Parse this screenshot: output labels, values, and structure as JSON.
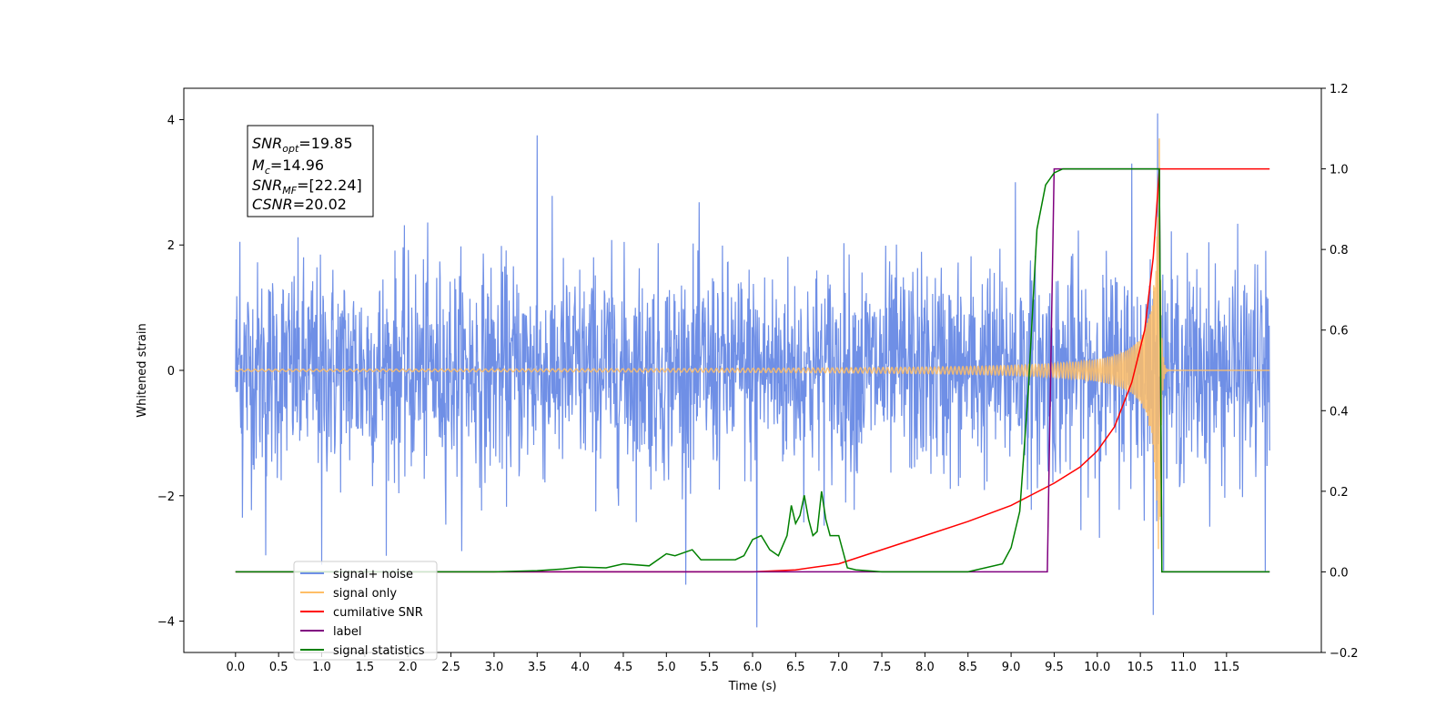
{
  "chart_data": {
    "type": "line",
    "xlabel": "Time (s)",
    "ylabel": "Whitened strain",
    "xlim": [
      -0.6,
      12.6
    ],
    "ylim": [
      -4.5,
      4.5
    ],
    "y2lim": [
      -0.2,
      1.2
    ],
    "x_ticks": [
      "0.0",
      "0.5",
      "1.0",
      "1.5",
      "2.0",
      "2.5",
      "3.0",
      "3.5",
      "4.0",
      "4.5",
      "5.0",
      "5.5",
      "6.0",
      "6.5",
      "7.0",
      "7.5",
      "8.0",
      "8.5",
      "9.0",
      "9.5",
      "10.0",
      "10.5",
      "11.0",
      "11.5"
    ],
    "y_ticks": [
      "4",
      "2",
      "0",
      "−2",
      "−4"
    ],
    "y2_ticks": [
      "1.2",
      "1.0",
      "0.8",
      "0.6",
      "0.4",
      "0.2",
      "0.0",
      "−0.2"
    ],
    "annotation": {
      "line1": {
        "main": "SNR",
        "sub": "opt",
        "rest": "=19.85"
      },
      "line2": {
        "main": "M",
        "sub": "c",
        "rest": "=14.96"
      },
      "line3": {
        "main": "SNR",
        "sub": "MF",
        "rest": "=[22.24]"
      },
      "line4": {
        "main": "CSNR",
        "sub": "",
        "rest": "=20.02"
      }
    },
    "legend": {
      "placement": "lower-left",
      "entries": [
        {
          "label": "signal+ noise",
          "color": "#6f8fe6"
        },
        {
          "label": "signal only",
          "color": "#ffbe66"
        },
        {
          "label": "cumilative SNR",
          "color": "#ff0000"
        },
        {
          "label": "label",
          "color": "#800080"
        },
        {
          "label": "signal statistics",
          "color": "#008000"
        }
      ]
    },
    "series": [
      {
        "name": "signal+ noise",
        "axis": "left",
        "color": "#6f8fe6",
        "x_range": [
          0.0,
          12.0
        ],
        "noise_std": 0.85,
        "spikes": [
          [
            0.05,
            2.05
          ],
          [
            0.08,
            -2.35
          ],
          [
            0.35,
            -2.95
          ],
          [
            1.0,
            -3.1
          ],
          [
            3.5,
            3.75
          ],
          [
            6.05,
            -4.1
          ],
          [
            9.05,
            3.0
          ],
          [
            10.4,
            3.3
          ],
          [
            10.65,
            -3.9
          ],
          [
            10.7,
            4.1
          ],
          [
            11.95,
            -3.2
          ]
        ]
      },
      {
        "name": "signal only",
        "axis": "left",
        "color": "#ffbe66",
        "chirp": {
          "t_merge": 10.72,
          "f_start": 10,
          "peak_amp": 3.7,
          "base_amp": 0.005
        }
      },
      {
        "name": "cumilative SNR",
        "axis": "right",
        "color": "#ff0000",
        "x": [
          0.0,
          6.0,
          6.5,
          7.0,
          7.5,
          8.0,
          8.5,
          9.0,
          9.5,
          9.8,
          10.0,
          10.2,
          10.4,
          10.55,
          10.65,
          10.72,
          12.0
        ],
        "y": [
          0.0,
          0.0,
          0.005,
          0.02,
          0.055,
          0.09,
          0.125,
          0.165,
          0.22,
          0.26,
          0.3,
          0.36,
          0.47,
          0.6,
          0.78,
          1.0,
          1.0
        ]
      },
      {
        "name": "label",
        "axis": "right",
        "color": "#800080",
        "x": [
          0.0,
          9.42,
          9.5,
          10.72,
          10.75,
          12.0
        ],
        "y": [
          0.0,
          0.0,
          1.0,
          1.0,
          0.0,
          0.0
        ]
      },
      {
        "name": "signal statistics",
        "axis": "right",
        "color": "#008000",
        "x": [
          0.0,
          3.0,
          3.5,
          3.8,
          4.0,
          4.3,
          4.5,
          4.8,
          5.0,
          5.1,
          5.3,
          5.4,
          5.5,
          5.7,
          5.8,
          5.9,
          6.0,
          6.1,
          6.2,
          6.3,
          6.4,
          6.45,
          6.5,
          6.55,
          6.6,
          6.65,
          6.7,
          6.75,
          6.8,
          6.85,
          6.9,
          7.0,
          7.1,
          7.2,
          7.5,
          8.5,
          8.9,
          9.0,
          9.1,
          9.2,
          9.3,
          9.4,
          9.5,
          9.6,
          9.7,
          10.0,
          10.5,
          10.72,
          10.75,
          12.0
        ],
        "y": [
          0.0,
          0.0,
          0.003,
          0.007,
          0.012,
          0.01,
          0.02,
          0.015,
          0.045,
          0.04,
          0.055,
          0.03,
          0.03,
          0.03,
          0.03,
          0.04,
          0.08,
          0.09,
          0.055,
          0.04,
          0.09,
          0.165,
          0.12,
          0.14,
          0.19,
          0.13,
          0.09,
          0.1,
          0.2,
          0.13,
          0.09,
          0.09,
          0.01,
          0.005,
          0.0,
          0.0,
          0.02,
          0.06,
          0.15,
          0.45,
          0.85,
          0.96,
          0.99,
          1.0,
          1.0,
          1.0,
          1.0,
          1.0,
          0.0,
          0.0
        ]
      }
    ]
  }
}
